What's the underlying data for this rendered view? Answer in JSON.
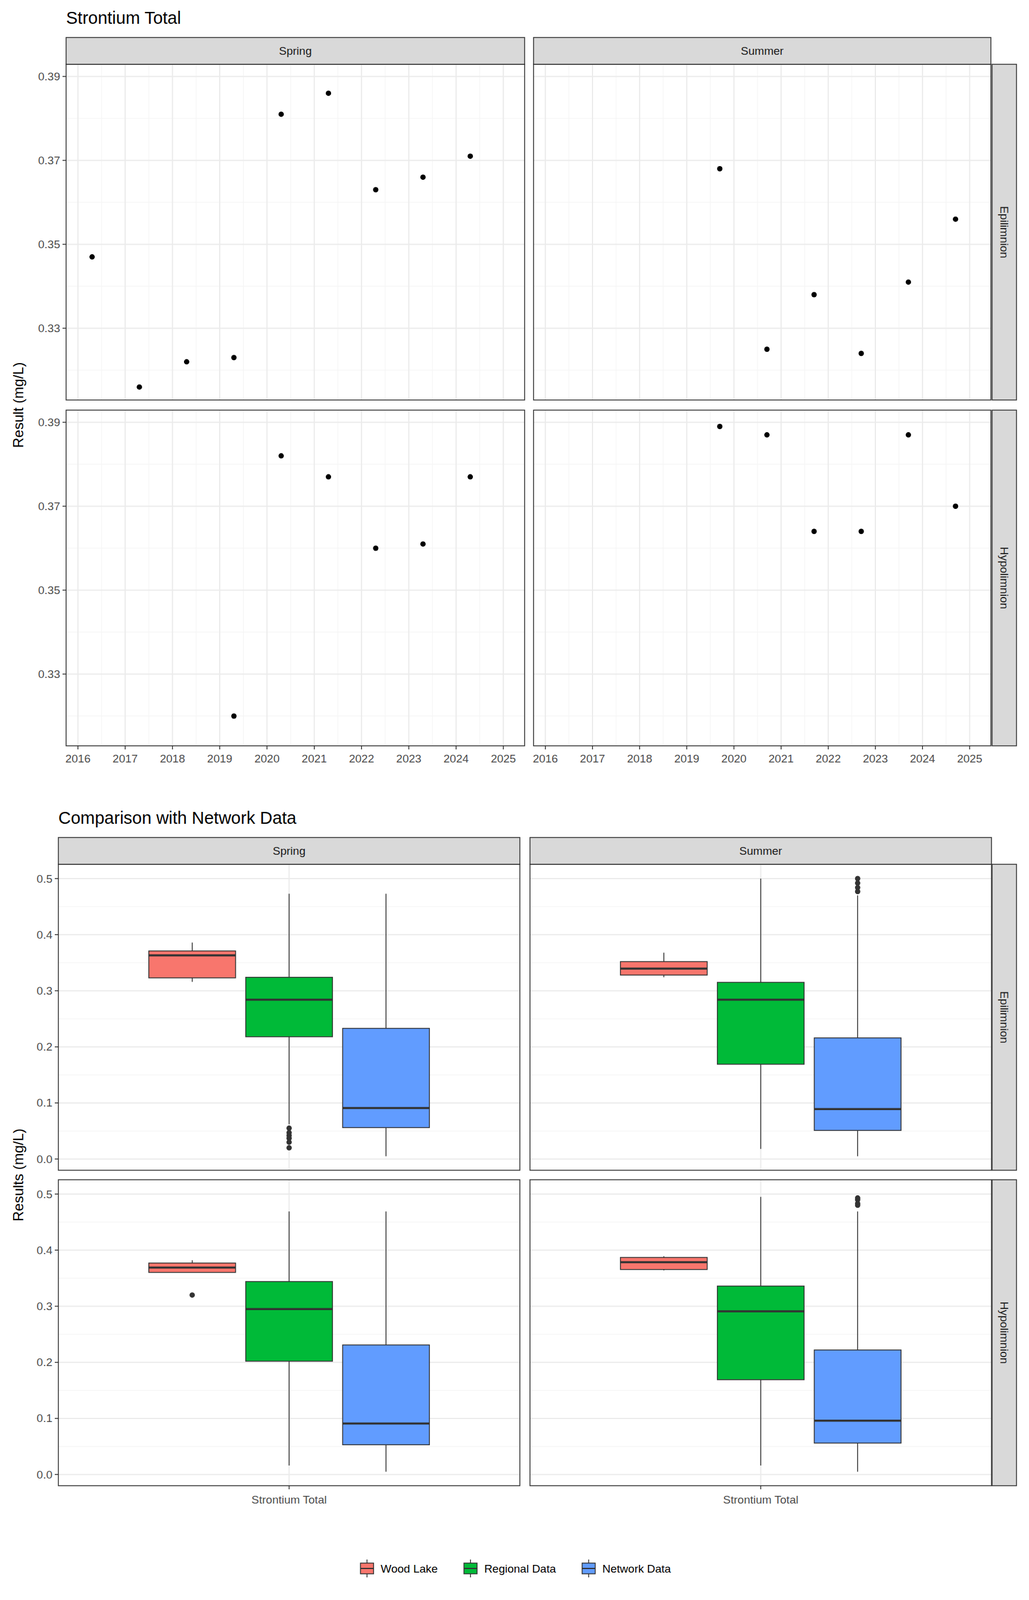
{
  "chart_data": [
    {
      "type": "scatter",
      "title": "Strontium Total",
      "y_label": "Result (mg/L)",
      "columns": [
        "Spring",
        "Summer"
      ],
      "rows": [
        "Epilimnion",
        "Hypolimnion"
      ],
      "xlim": [
        2015.75,
        2025.45
      ],
      "xticks": [
        2016,
        2017,
        2018,
        2019,
        2020,
        2021,
        2022,
        2023,
        2024,
        2025
      ],
      "ylim": [
        0.3129,
        0.3929
      ],
      "yticks": [
        0.33,
        0.35,
        0.37,
        0.39
      ],
      "grid": true,
      "color": "#000000",
      "marker": "circle",
      "panels": [
        [
          {
            "x": [
              2016.3,
              2017.3,
              2018.3,
              2019.3,
              2020.3,
              2021.3,
              2022.3,
              2023.3,
              2024.3
            ],
            "y": [
              0.347,
              0.316,
              0.322,
              0.323,
              0.381,
              0.386,
              0.363,
              0.366,
              0.371
            ]
          },
          {
            "x": [
              2019.7,
              2020.7,
              2021.7,
              2022.7,
              2023.7,
              2024.7
            ],
            "y": [
              0.368,
              0.325,
              0.338,
              0.324,
              0.341,
              0.356
            ]
          }
        ],
        [
          {
            "x": [
              2019.3,
              2020.3,
              2021.3,
              2022.3,
              2023.3,
              2024.3
            ],
            "y": [
              0.32,
              0.382,
              0.377,
              0.36,
              0.361,
              0.377
            ]
          },
          {
            "x": [
              2019.7,
              2020.7,
              2021.7,
              2022.7,
              2023.7,
              2024.7
            ],
            "y": [
              0.389,
              0.387,
              0.364,
              0.364,
              0.387,
              0.37
            ]
          }
        ]
      ]
    },
    {
      "type": "box",
      "title": "Comparison with Network Data",
      "y_label": "Results (mg/L)",
      "categories": [
        "Strontium Total"
      ],
      "columns": [
        "Spring",
        "Summer"
      ],
      "rows": [
        "Epilimnion",
        "Hypolimnion"
      ],
      "ylim": [
        -0.02,
        0.5255
      ],
      "yticks": [
        {
          "value": 0,
          "label": "0.0"
        },
        0.1,
        0.2,
        0.3,
        0.4,
        0.5
      ],
      "grid": true,
      "legend": "bottom",
      "series": [
        {
          "name": "Wood Lake",
          "color": "#F8766D"
        },
        {
          "name": "Regional Data",
          "color": "#00BA38"
        },
        {
          "name": "Network Data",
          "color": "#619CFF"
        }
      ],
      "panels": [
        [
          [
            {
              "whisker_low": 0.316,
              "q1": 0.323,
              "median": 0.363,
              "q3": 0.371,
              "whisker_high": 0.386,
              "outliers": []
            },
            {
              "whisker_low": 0.062,
              "q1": 0.218,
              "median": 0.284,
              "q3": 0.324,
              "whisker_high": 0.473,
              "outliers": [
                0.055,
                0.047,
                0.042,
                0.037,
                0.03,
                0.02
              ]
            },
            {
              "whisker_low": 0.005,
              "q1": 0.056,
              "median": 0.091,
              "q3": 0.233,
              "whisker_high": 0.473,
              "outliers": []
            }
          ],
          [
            {
              "whisker_low": 0.324,
              "q1": 0.328,
              "median": 0.3395,
              "q3": 0.352,
              "whisker_high": 0.368,
              "outliers": []
            },
            {
              "whisker_low": 0.018,
              "q1": 0.169,
              "median": 0.284,
              "q3": 0.315,
              "whisker_high": 0.5,
              "outliers": []
            },
            {
              "whisker_low": 0.005,
              "q1": 0.051,
              "median": 0.089,
              "q3": 0.216,
              "whisker_high": 0.47,
              "outliers": [
                0.5,
                0.492,
                0.484,
                0.477
              ]
            }
          ]
        ],
        [
          [
            {
              "whisker_low": 0.36,
              "q1": 0.3603,
              "median": 0.369,
              "q3": 0.377,
              "whisker_high": 0.382,
              "outliers": [
                0.32
              ]
            },
            {
              "whisker_low": 0.016,
              "q1": 0.202,
              "median": 0.295,
              "q3": 0.344,
              "whisker_high": 0.469,
              "outliers": []
            },
            {
              "whisker_low": 0.005,
              "q1": 0.053,
              "median": 0.091,
              "q3": 0.231,
              "whisker_high": 0.469,
              "outliers": []
            }
          ],
          [
            {
              "whisker_low": 0.364,
              "q1": 0.3655,
              "median": 0.3785,
              "q3": 0.387,
              "whisker_high": 0.389,
              "outliers": []
            },
            {
              "whisker_low": 0.016,
              "q1": 0.169,
              "median": 0.291,
              "q3": 0.336,
              "whisker_high": 0.495,
              "outliers": []
            },
            {
              "whisker_low": 0.005,
              "q1": 0.056,
              "median": 0.096,
              "q3": 0.222,
              "whisker_high": 0.469,
              "outliers": [
                0.493,
                0.49,
                0.483,
                0.48
              ]
            }
          ]
        ]
      ]
    }
  ]
}
